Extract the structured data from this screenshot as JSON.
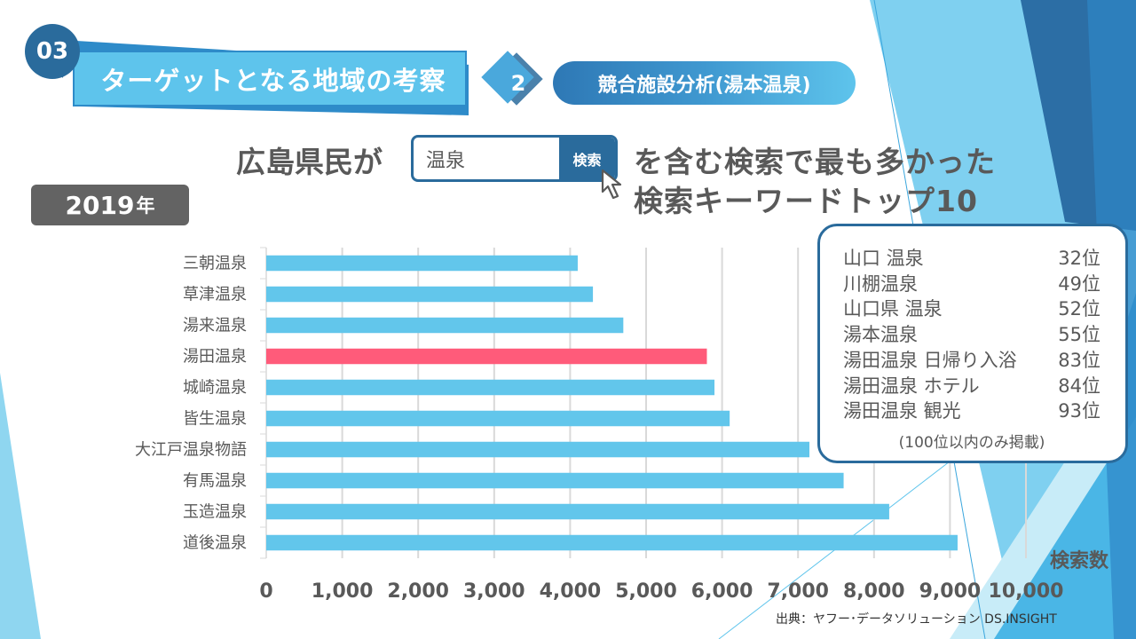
{
  "section": {
    "number": "03",
    "title": "ターゲットとなる地域の考察"
  },
  "subsection": {
    "number": "2",
    "title": "競合施設分析(湯本温泉)"
  },
  "headline": {
    "prefix": "広島県民が",
    "search_query": "温泉",
    "search_button": "検索",
    "line1": "を含む検索で最も多かった",
    "line2": "検索キーワードトップ10"
  },
  "year_badge": {
    "year": "2019",
    "suffix": "年"
  },
  "ranking_box": {
    "items": [
      {
        "keyword": "山口 温泉",
        "rank": "32位"
      },
      {
        "keyword": "川棚温泉",
        "rank": "49位"
      },
      {
        "keyword": "山口県 温泉",
        "rank": "52位"
      },
      {
        "keyword": "湯本温泉",
        "rank": "55位"
      },
      {
        "keyword": "湯田温泉 日帰り入浴",
        "rank": "83位"
      },
      {
        "keyword": "湯田温泉 ホテル",
        "rank": "84位"
      },
      {
        "keyword": "湯田温泉 観光",
        "rank": "93位"
      }
    ],
    "note": "(100位以内のみ掲載)"
  },
  "source": "出典：ヤフー･データソリューション DS.INSIGHT",
  "colors": {
    "bar": "#62c6eb",
    "highlight": "#ff5b7a",
    "grid": "#d9d9d9",
    "accent_dark": "#2a6b9c"
  },
  "chart_data": {
    "type": "bar",
    "orientation": "horizontal",
    "title": "",
    "xlabel": "検索数",
    "ylabel": "",
    "categories": [
      "三朝温泉",
      "草津温泉",
      "湯来温泉",
      "湯田温泉",
      "城崎温泉",
      "皆生温泉",
      "大江戸温泉物語",
      "有馬温泉",
      "玉造温泉",
      "道後温泉"
    ],
    "values": [
      4100,
      4300,
      4700,
      5800,
      5900,
      6100,
      7150,
      7600,
      8200,
      9100
    ],
    "highlight_category": "湯田温泉",
    "xlim": [
      0,
      10000
    ],
    "xticks": [
      0,
      1000,
      2000,
      3000,
      4000,
      5000,
      6000,
      7000,
      8000,
      9000,
      10000
    ],
    "xtick_labels": [
      "0",
      "1,000",
      "2,000",
      "3,000",
      "4,000",
      "5,000",
      "6,000",
      "7,000",
      "8,000",
      "9,000",
      "10,000"
    ],
    "grid": true,
    "legend": "none"
  }
}
